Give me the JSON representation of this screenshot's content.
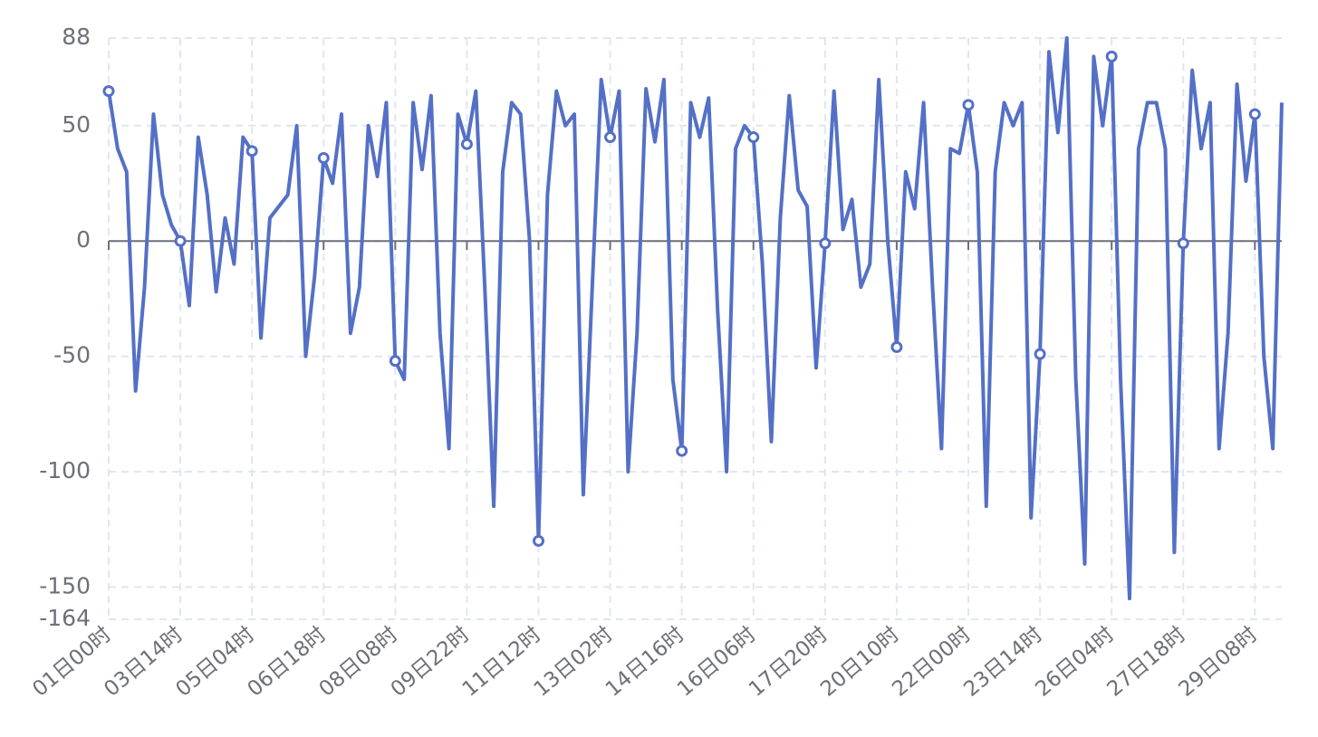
{
  "chart_data": {
    "type": "line",
    "categories": [
      "01日00时",
      null,
      null,
      null,
      null,
      null,
      null,
      null,
      "03日14时",
      null,
      null,
      null,
      null,
      null,
      null,
      null,
      "05日04时",
      null,
      null,
      null,
      null,
      null,
      null,
      null,
      "06日18时",
      null,
      null,
      null,
      null,
      null,
      null,
      null,
      "08日08时",
      null,
      null,
      null,
      null,
      null,
      null,
      null,
      "09日22时",
      null,
      null,
      null,
      null,
      null,
      null,
      null,
      "11日12时",
      null,
      null,
      null,
      null,
      null,
      null,
      null,
      "13日02时",
      null,
      null,
      null,
      null,
      null,
      null,
      null,
      "14日16时",
      null,
      null,
      null,
      null,
      null,
      null,
      null,
      "16日06时",
      null,
      null,
      null,
      null,
      null,
      null,
      null,
      "17日20时",
      null,
      null,
      null,
      null,
      null,
      null,
      null,
      "20日10时",
      null,
      null,
      null,
      null,
      null,
      null,
      null,
      "22日00时",
      null,
      null,
      null,
      null,
      null,
      null,
      null,
      "23日14时",
      null,
      null,
      null,
      null,
      null,
      null,
      null,
      "26日04时",
      null,
      null,
      null,
      null,
      null,
      null,
      null,
      "27日18时",
      null,
      null,
      null,
      null,
      null,
      null,
      null,
      "29日08时",
      null,
      null,
      null
    ],
    "series": [
      {
        "color": "#5470c6",
        "values": [
          65,
          40,
          30,
          -65,
          -20,
          55,
          20,
          7,
          0,
          -28,
          45,
          20,
          -22,
          10,
          -10,
          45,
          39,
          -42,
          10,
          15,
          20,
          50,
          -50,
          -15,
          36,
          25,
          55,
          -40,
          -20,
          50,
          28,
          60,
          -52,
          -60,
          60,
          31,
          63,
          -40,
          -90,
          55,
          42,
          65,
          -20,
          -115,
          30,
          60,
          55,
          0,
          -130,
          20,
          65,
          50,
          55,
          -110,
          -20,
          70,
          45,
          65,
          -100,
          -40,
          66,
          43,
          70,
          -60,
          -91,
          60,
          45,
          62,
          -30,
          -100,
          40,
          50,
          45,
          -10,
          -87,
          10,
          63,
          22,
          15,
          -55,
          -1,
          65,
          5,
          18,
          -20,
          -10,
          70,
          0,
          -46,
          30,
          14,
          60,
          -20,
          -90,
          40,
          38,
          59,
          30,
          -115,
          30,
          60,
          50,
          60,
          -120,
          -49,
          82,
          47,
          88,
          -60,
          -140,
          80,
          50,
          80,
          -60,
          -155,
          40,
          60,
          60,
          40,
          -135,
          -1,
          74,
          40,
          60,
          -90,
          -40,
          68,
          26,
          55,
          -50,
          -90,
          60
        ]
      }
    ],
    "ylim": [
      -164,
      88
    ],
    "yticks": [
      -164,
      -150,
      -100,
      -50,
      0,
      50,
      88
    ],
    "grid": true
  }
}
